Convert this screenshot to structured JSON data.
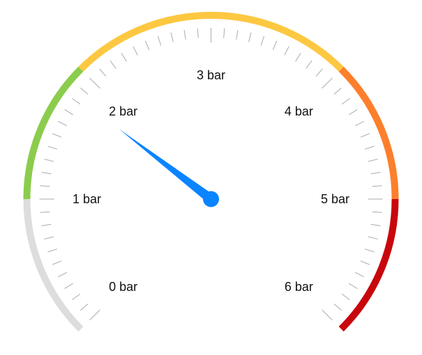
{
  "gauge": {
    "min": 0,
    "max": 6,
    "unit": "bar",
    "value": 1.83,
    "scale_labels": [
      {
        "value": 0,
        "text": "0 bar"
      },
      {
        "value": 1,
        "text": "1 bar"
      },
      {
        "value": 2,
        "text": "2 bar"
      },
      {
        "value": 3,
        "text": "3 bar"
      },
      {
        "value": 4,
        "text": "4 bar"
      },
      {
        "value": 5,
        "text": "5 bar"
      },
      {
        "value": 6,
        "text": "6 bar"
      }
    ],
    "color_bands": [
      {
        "from": 0,
        "to": 1,
        "color": "#dddddd"
      },
      {
        "from": 1,
        "to": 2,
        "color": "#8ccc4d"
      },
      {
        "from": 2,
        "to": 4,
        "color": "#fdc841"
      },
      {
        "from": 4,
        "to": 5,
        "color": "#fd7f2c"
      },
      {
        "from": 5,
        "to": 6,
        "color": "#c8070d"
      }
    ],
    "ticks_per_unit": 10,
    "tick_color": "#aaaaaa",
    "needle_color": "#0a84ff"
  }
}
